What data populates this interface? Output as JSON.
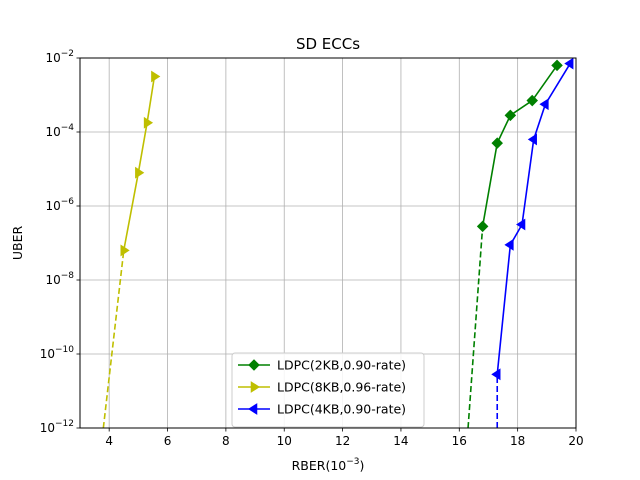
{
  "chart_data": {
    "type": "line",
    "title": "SD ECCs",
    "xlabel": {
      "base": "RBER(10",
      "exp": "−3",
      "close": ")"
    },
    "ylabel": "UBER",
    "xlim": [
      3,
      20
    ],
    "ylim_log10": [
      -12,
      -2
    ],
    "y_scale": "log",
    "grid": true,
    "legend_position": "lower center",
    "x_ticks": [
      {
        "value": 4,
        "label": "4"
      },
      {
        "value": 6,
        "label": "6"
      },
      {
        "value": 8,
        "label": "8"
      },
      {
        "value": 10,
        "label": "10"
      },
      {
        "value": 12,
        "label": "12"
      },
      {
        "value": 14,
        "label": "14"
      },
      {
        "value": 16,
        "label": "16"
      },
      {
        "value": 18,
        "label": "18"
      },
      {
        "value": 20,
        "label": "20"
      }
    ],
    "y_ticks": [
      {
        "value": -12,
        "base": "10",
        "exp": "−12"
      },
      {
        "value": -10,
        "base": "10",
        "exp": "−10"
      },
      {
        "value": -8,
        "base": "10",
        "exp": "−8"
      },
      {
        "value": -6,
        "base": "10",
        "exp": "−6"
      },
      {
        "value": -4,
        "base": "10",
        "exp": "−4"
      },
      {
        "value": -2,
        "base": "10",
        "exp": "−2"
      }
    ],
    "series": [
      {
        "name": "LDPC(2KB,0.90-rate)",
        "color": "#008000",
        "marker": "diamond",
        "x": [
          16.8,
          17.3,
          17.75,
          18.5,
          19.35
        ],
        "y_log10": [
          -6.55,
          -4.3,
          -3.55,
          -3.15,
          -2.2
        ],
        "extrapolation": {
          "x": [
            16.3,
            16.8
          ],
          "y_log10": [
            -12,
            -6.55
          ]
        }
      },
      {
        "name": "LDPC(8KB,0.96-rate)",
        "color": "#bfbf00",
        "marker": "triangle-right",
        "x": [
          4.5,
          5.0,
          5.3,
          5.55
        ],
        "y_log10": [
          -7.2,
          -5.1,
          -3.75,
          -2.5
        ],
        "extrapolation": {
          "x": [
            3.8,
            4.5
          ],
          "y_log10": [
            -12,
            -7.2
          ]
        }
      },
      {
        "name": "LDPC(4KB,0.90-rate)",
        "color": "#0000ff",
        "marker": "triangle-left",
        "x": [
          17.3,
          17.75,
          18.15,
          18.55,
          18.95,
          19.8
        ],
        "y_log10": [
          -10.55,
          -7.05,
          -6.5,
          -4.2,
          -3.25,
          -2.15
        ],
        "extrapolation": {
          "x": [
            17.3,
            17.3
          ],
          "y_log10": [
            -12,
            -10.55
          ]
        }
      }
    ]
  }
}
